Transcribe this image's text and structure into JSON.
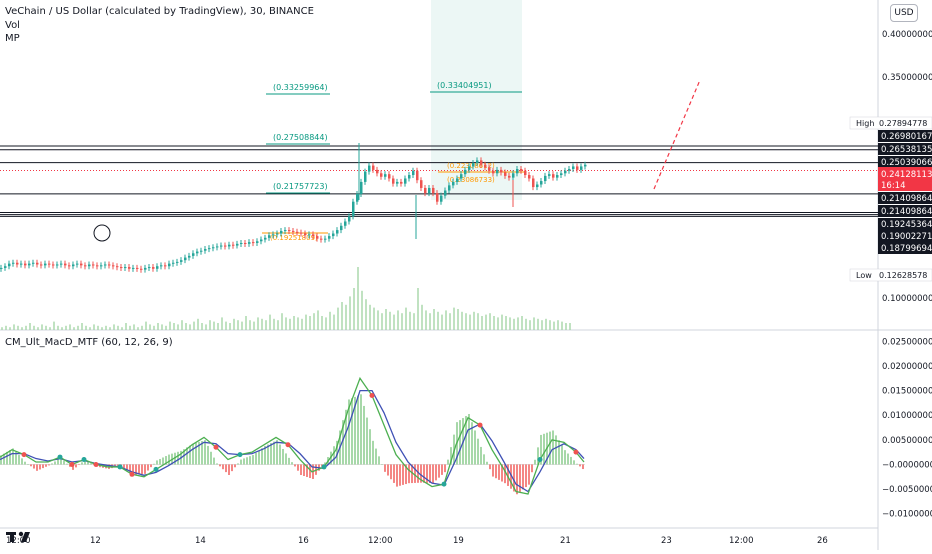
{
  "header": {
    "title": "VeChain / US Dollar (calculated by TradingView), 30, BINANCE",
    "indicator_vol": "Vol",
    "indicator_mp": "MP",
    "currency_button": "USD"
  },
  "macd_panel": {
    "title": "CM_Ult_MacD_MTF (60, 12, 26, 9)"
  },
  "colors": {
    "up": "#26a69a",
    "down": "#ef5350",
    "macd_line_up": "#4caf50",
    "macd_line_down": "#ef5350",
    "signal": "#3f51b5",
    "level_line": "#131722",
    "current_price": "#f23645",
    "fib": "#089981",
    "fib_orange": "#ff9800"
  },
  "price_axis": {
    "ticks": [
      "0.40000000",
      "0.35000000",
      "0.10000000"
    ],
    "labels": [
      {
        "text": "High",
        "value": "0.27894778",
        "style": "hl"
      },
      {
        "text": "",
        "value": "0.26980167",
        "style": "dark"
      },
      {
        "text": "",
        "value": "0.26538135",
        "style": "dark"
      },
      {
        "text": "",
        "value": "0.25039066",
        "style": "dark"
      },
      {
        "text": "",
        "value": "0.24128113",
        "style": "current",
        "extra": "16:14"
      },
      {
        "text": "",
        "value": "0.21409864",
        "style": "dark"
      },
      {
        "text": "",
        "value": "0.21409864",
        "style": "dark"
      },
      {
        "text": "",
        "value": "0.19245364",
        "style": "dark"
      },
      {
        "text": "",
        "value": "0.19002271",
        "style": "dark"
      },
      {
        "text": "",
        "value": "0.18799694",
        "style": "dark"
      },
      {
        "text": "Low",
        "value": "0.12628578",
        "style": "hl"
      }
    ]
  },
  "macd_axis": {
    "ticks": [
      "0.02500000",
      "0.02000000",
      "0.01500000",
      "0.01000000",
      "0.00500000",
      "−0.00000000",
      "−0.00500000",
      "−0.01000000"
    ]
  },
  "time_axis": {
    "ticks": [
      "12:00",
      "12",
      "14",
      "16",
      "12:00",
      "19",
      "21",
      "23",
      "12:00",
      "26"
    ]
  },
  "drawings": {
    "fib_labels": [
      "(0.33259964)",
      "(0.33404951)",
      "(0.27508844)",
      "(0.21757723)"
    ],
    "overlap_labels": [
      "(0.22308612)",
      "(0.23086733)",
      "(0.19251809)"
    ]
  },
  "chart_data": [
    {
      "type": "line",
      "title": "VeChain / US Dollar (calculated by TradingView), 30, BINANCE",
      "xlabel": "",
      "ylabel": "",
      "x_tick_labels": [
        "12:00",
        "12",
        "14",
        "16",
        "12:00",
        "19",
        "21",
        "23",
        "12:00",
        "26"
      ],
      "ylim": [
        0.075,
        0.425
      ],
      "y_ticks": [
        0.4,
        0.35,
        0.1
      ],
      "grid": false,
      "series": [
        {
          "x": [
            0,
            4,
            8,
            12,
            16,
            20,
            24,
            28,
            32,
            36,
            40,
            44,
            48,
            52,
            56,
            60,
            64,
            68,
            72,
            76,
            80,
            84,
            88,
            92,
            96,
            100,
            104,
            108,
            112,
            116,
            120,
            124,
            128,
            132,
            136,
            140,
            144,
            148,
            152,
            156,
            160,
            164,
            168,
            172,
            176,
            180,
            184,
            188,
            192,
            196,
            200,
            204,
            208,
            212,
            216,
            220,
            224,
            228,
            232,
            236,
            240,
            244,
            248,
            252,
            256,
            260,
            264,
            268,
            272,
            276,
            280,
            284,
            288,
            292,
            296,
            300,
            304,
            308,
            312,
            316,
            320,
            324,
            328,
            332,
            336,
            340,
            344,
            348,
            352,
            356,
            360,
            364,
            368,
            372,
            376,
            380,
            384,
            388,
            392,
            396,
            400,
            404,
            408,
            412,
            416,
            420,
            424,
            428,
            432,
            436,
            440,
            444,
            448,
            452,
            456,
            460,
            464,
            468,
            472,
            476,
            480,
            484,
            488,
            492,
            496,
            500,
            504,
            508,
            512,
            516,
            520,
            524,
            528,
            532,
            536,
            540,
            544,
            548,
            552,
            556,
            560,
            564,
            568,
            572,
            576,
            580,
            584
          ],
          "values": [
            0.128,
            0.13,
            0.133,
            0.134,
            0.132,
            0.133,
            0.131,
            0.133,
            0.134,
            0.132,
            0.131,
            0.133,
            0.132,
            0.131,
            0.132,
            0.133,
            0.131,
            0.13,
            0.132,
            0.133,
            0.131,
            0.13,
            0.132,
            0.131,
            0.13,
            0.131,
            0.132,
            0.131,
            0.13,
            0.129,
            0.128,
            0.129,
            0.127,
            0.128,
            0.127,
            0.126,
            0.128,
            0.129,
            0.127,
            0.13,
            0.131,
            0.13,
            0.133,
            0.134,
            0.135,
            0.137,
            0.14,
            0.142,
            0.145,
            0.147,
            0.148,
            0.15,
            0.151,
            0.152,
            0.153,
            0.154,
            0.153,
            0.155,
            0.154,
            0.156,
            0.157,
            0.156,
            0.158,
            0.157,
            0.159,
            0.161,
            0.163,
            0.166,
            0.167,
            0.168,
            0.171,
            0.172,
            0.171,
            0.17,
            0.169,
            0.168,
            0.166,
            0.167,
            0.165,
            0.162,
            0.161,
            0.162,
            0.165,
            0.168,
            0.172,
            0.177,
            0.182,
            0.188,
            0.205,
            0.214,
            0.228,
            0.24,
            0.247,
            0.242,
            0.238,
            0.234,
            0.237,
            0.232,
            0.226,
            0.228,
            0.226,
            0.232,
            0.236,
            0.241,
            0.23,
            0.221,
            0.215,
            0.221,
            0.215,
            0.205,
            0.212,
            0.218,
            0.224,
            0.228,
            0.232,
            0.237,
            0.242,
            0.246,
            0.25,
            0.253,
            0.248,
            0.245,
            0.241,
            0.238,
            0.242,
            0.239,
            0.235,
            0.233,
            0.238,
            0.243,
            0.241,
            0.236,
            0.232,
            0.222,
            0.225,
            0.229,
            0.235,
            0.237,
            0.233,
            0.236,
            0.238,
            0.241,
            0.243,
            0.246,
            0.242,
            0.246,
            0.248
          ]
        }
      ]
    },
    {
      "type": "bar",
      "title": "Vol",
      "xlabel": "",
      "ylabel": "",
      "values": [
        2,
        3,
        2,
        4,
        3,
        2,
        3,
        5,
        3,
        2,
        4,
        3,
        2,
        6,
        3,
        2,
        3,
        4,
        2,
        3,
        5,
        3,
        2,
        4,
        3,
        2,
        3,
        2,
        4,
        3,
        2,
        5,
        3,
        4,
        2,
        3,
        6,
        4,
        3,
        5,
        4,
        3,
        6,
        5,
        4,
        7,
        5,
        4,
        6,
        8,
        5,
        4,
        7,
        6,
        5,
        9,
        6,
        5,
        8,
        7,
        6,
        10,
        7,
        6,
        9,
        8,
        7,
        11,
        8,
        7,
        12,
        9,
        8,
        10,
        9,
        8,
        11,
        10,
        12,
        14,
        10,
        9,
        13,
        11,
        16,
        20,
        18,
        24,
        30,
        45,
        28,
        22,
        18,
        16,
        14,
        12,
        15,
        13,
        11,
        14,
        12,
        16,
        13,
        12,
        30,
        18,
        14,
        12,
        15,
        13,
        11,
        14,
        12,
        16,
        15,
        13,
        12,
        11,
        13,
        12,
        10,
        11,
        12,
        10,
        9,
        11,
        10,
        9,
        8,
        9,
        10,
        8,
        7,
        9,
        8,
        7,
        8,
        7,
        6,
        7,
        6,
        5,
        5
      ],
      "ylim": [
        0,
        50
      ]
    },
    {
      "type": "line",
      "title": "CM_Ult_MacD_MTF (60, 12, 26, 9)",
      "xlabel": "",
      "ylabel": "",
      "ylim": [
        -0.0125,
        0.0265
      ],
      "y_ticks": [
        0.025,
        0.02,
        0.015,
        0.01,
        0.005,
        0,
        -0.005,
        -0.01
      ],
      "series": [
        {
          "name": "MACD",
          "x": [
            0,
            12,
            24,
            36,
            48,
            60,
            72,
            84,
            96,
            108,
            120,
            132,
            144,
            156,
            168,
            180,
            192,
            204,
            216,
            228,
            240,
            252,
            264,
            276,
            288,
            300,
            312,
            324,
            336,
            348,
            360,
            372,
            384,
            396,
            408,
            420,
            432,
            444,
            456,
            468,
            480,
            492,
            504,
            516,
            528,
            540,
            552,
            564,
            576,
            584
          ],
          "values": [
            0.0015,
            0.003,
            0.002,
            0.0005,
            0.0005,
            0.0015,
            0.0,
            0.001,
            0.0,
            -0.0005,
            -0.0005,
            -0.002,
            -0.0025,
            -0.001,
            0.0005,
            0.002,
            0.004,
            0.0055,
            0.0035,
            0.001,
            0.002,
            0.0025,
            0.004,
            0.0055,
            0.004,
            0.001,
            -0.0015,
            -0.0005,
            0.003,
            0.011,
            0.0175,
            0.014,
            0.008,
            0.002,
            -0.001,
            -0.003,
            -0.0045,
            -0.004,
            0.004,
            0.0095,
            0.008,
            0.003,
            -0.001,
            -0.0055,
            -0.006,
            0.001,
            0.005,
            0.0045,
            0.0025,
            0.0005
          ]
        },
        {
          "name": "Signal",
          "x": [
            0,
            12,
            24,
            36,
            48,
            60,
            72,
            84,
            96,
            108,
            120,
            132,
            144,
            156,
            168,
            180,
            192,
            204,
            216,
            228,
            240,
            252,
            264,
            276,
            288,
            300,
            312,
            324,
            336,
            348,
            360,
            372,
            384,
            396,
            408,
            420,
            432,
            444,
            456,
            468,
            480,
            492,
            504,
            516,
            528,
            540,
            552,
            564,
            576,
            584
          ],
          "values": [
            0.001,
            0.0022,
            0.0022,
            0.0012,
            0.0007,
            0.0012,
            0.0005,
            0.0008,
            0.0002,
            -0.0002,
            -0.0005,
            -0.0015,
            -0.0022,
            -0.0016,
            -0.0003,
            0.0012,
            0.003,
            0.0045,
            0.0042,
            0.0022,
            0.002,
            0.0022,
            0.0032,
            0.0045,
            0.0043,
            0.0022,
            -0.0005,
            -0.0008,
            0.0015,
            0.0075,
            0.015,
            0.015,
            0.0105,
            0.0045,
            0.0005,
            -0.002,
            -0.0038,
            -0.0042,
            0.001,
            0.007,
            0.0082,
            0.0048,
            0.0005,
            -0.004,
            -0.0055,
            -0.0015,
            0.003,
            0.0042,
            0.003,
            0.0012
          ]
        }
      ]
    }
  ]
}
